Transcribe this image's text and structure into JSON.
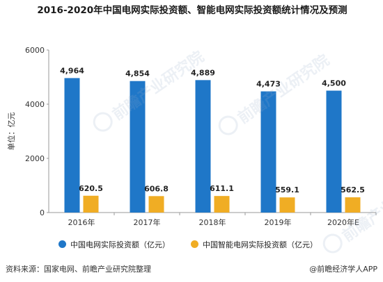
{
  "title": "2016-2020年中国电网实际投资额、智能电网实际投资额统计情况及预测",
  "footer": {
    "source": "资料来源：国家电网、前瞻产业研究院整理",
    "brand": "@前瞻经济学人APP"
  },
  "watermark_text": "前瞻产业研究院",
  "colors": {
    "series1": "#1f77c8",
    "series2": "#f0ad24",
    "axis": "#999999",
    "grid": "#dddddd"
  },
  "chart_data": {
    "type": "bar",
    "title": "2016-2020年中国电网实际投资额、智能电网实际投资额统计情况及预测",
    "ylabel": "单位：亿元",
    "xlabel": "",
    "ylim": [
      0,
      6000
    ],
    "yticks": [
      0,
      2000,
      4000,
      6000
    ],
    "categories": [
      "2016年",
      "2017年",
      "2018年",
      "2019年",
      "2020年E"
    ],
    "legend_position": "bottom",
    "series": [
      {
        "name": "中国电网实际投资额（亿元）",
        "values": [
          4964,
          4854,
          4889,
          4473,
          4500
        ],
        "labels": [
          "4,964",
          "4,854",
          "4,889",
          "4,473",
          "4,500"
        ]
      },
      {
        "name": "中国智能电网实际投资额（亿元）",
        "values": [
          620.5,
          606.8,
          611.1,
          559.1,
          562.5
        ],
        "labels": [
          "620.5",
          "606.8",
          "611.1",
          "559.1",
          "562.5"
        ]
      }
    ]
  }
}
